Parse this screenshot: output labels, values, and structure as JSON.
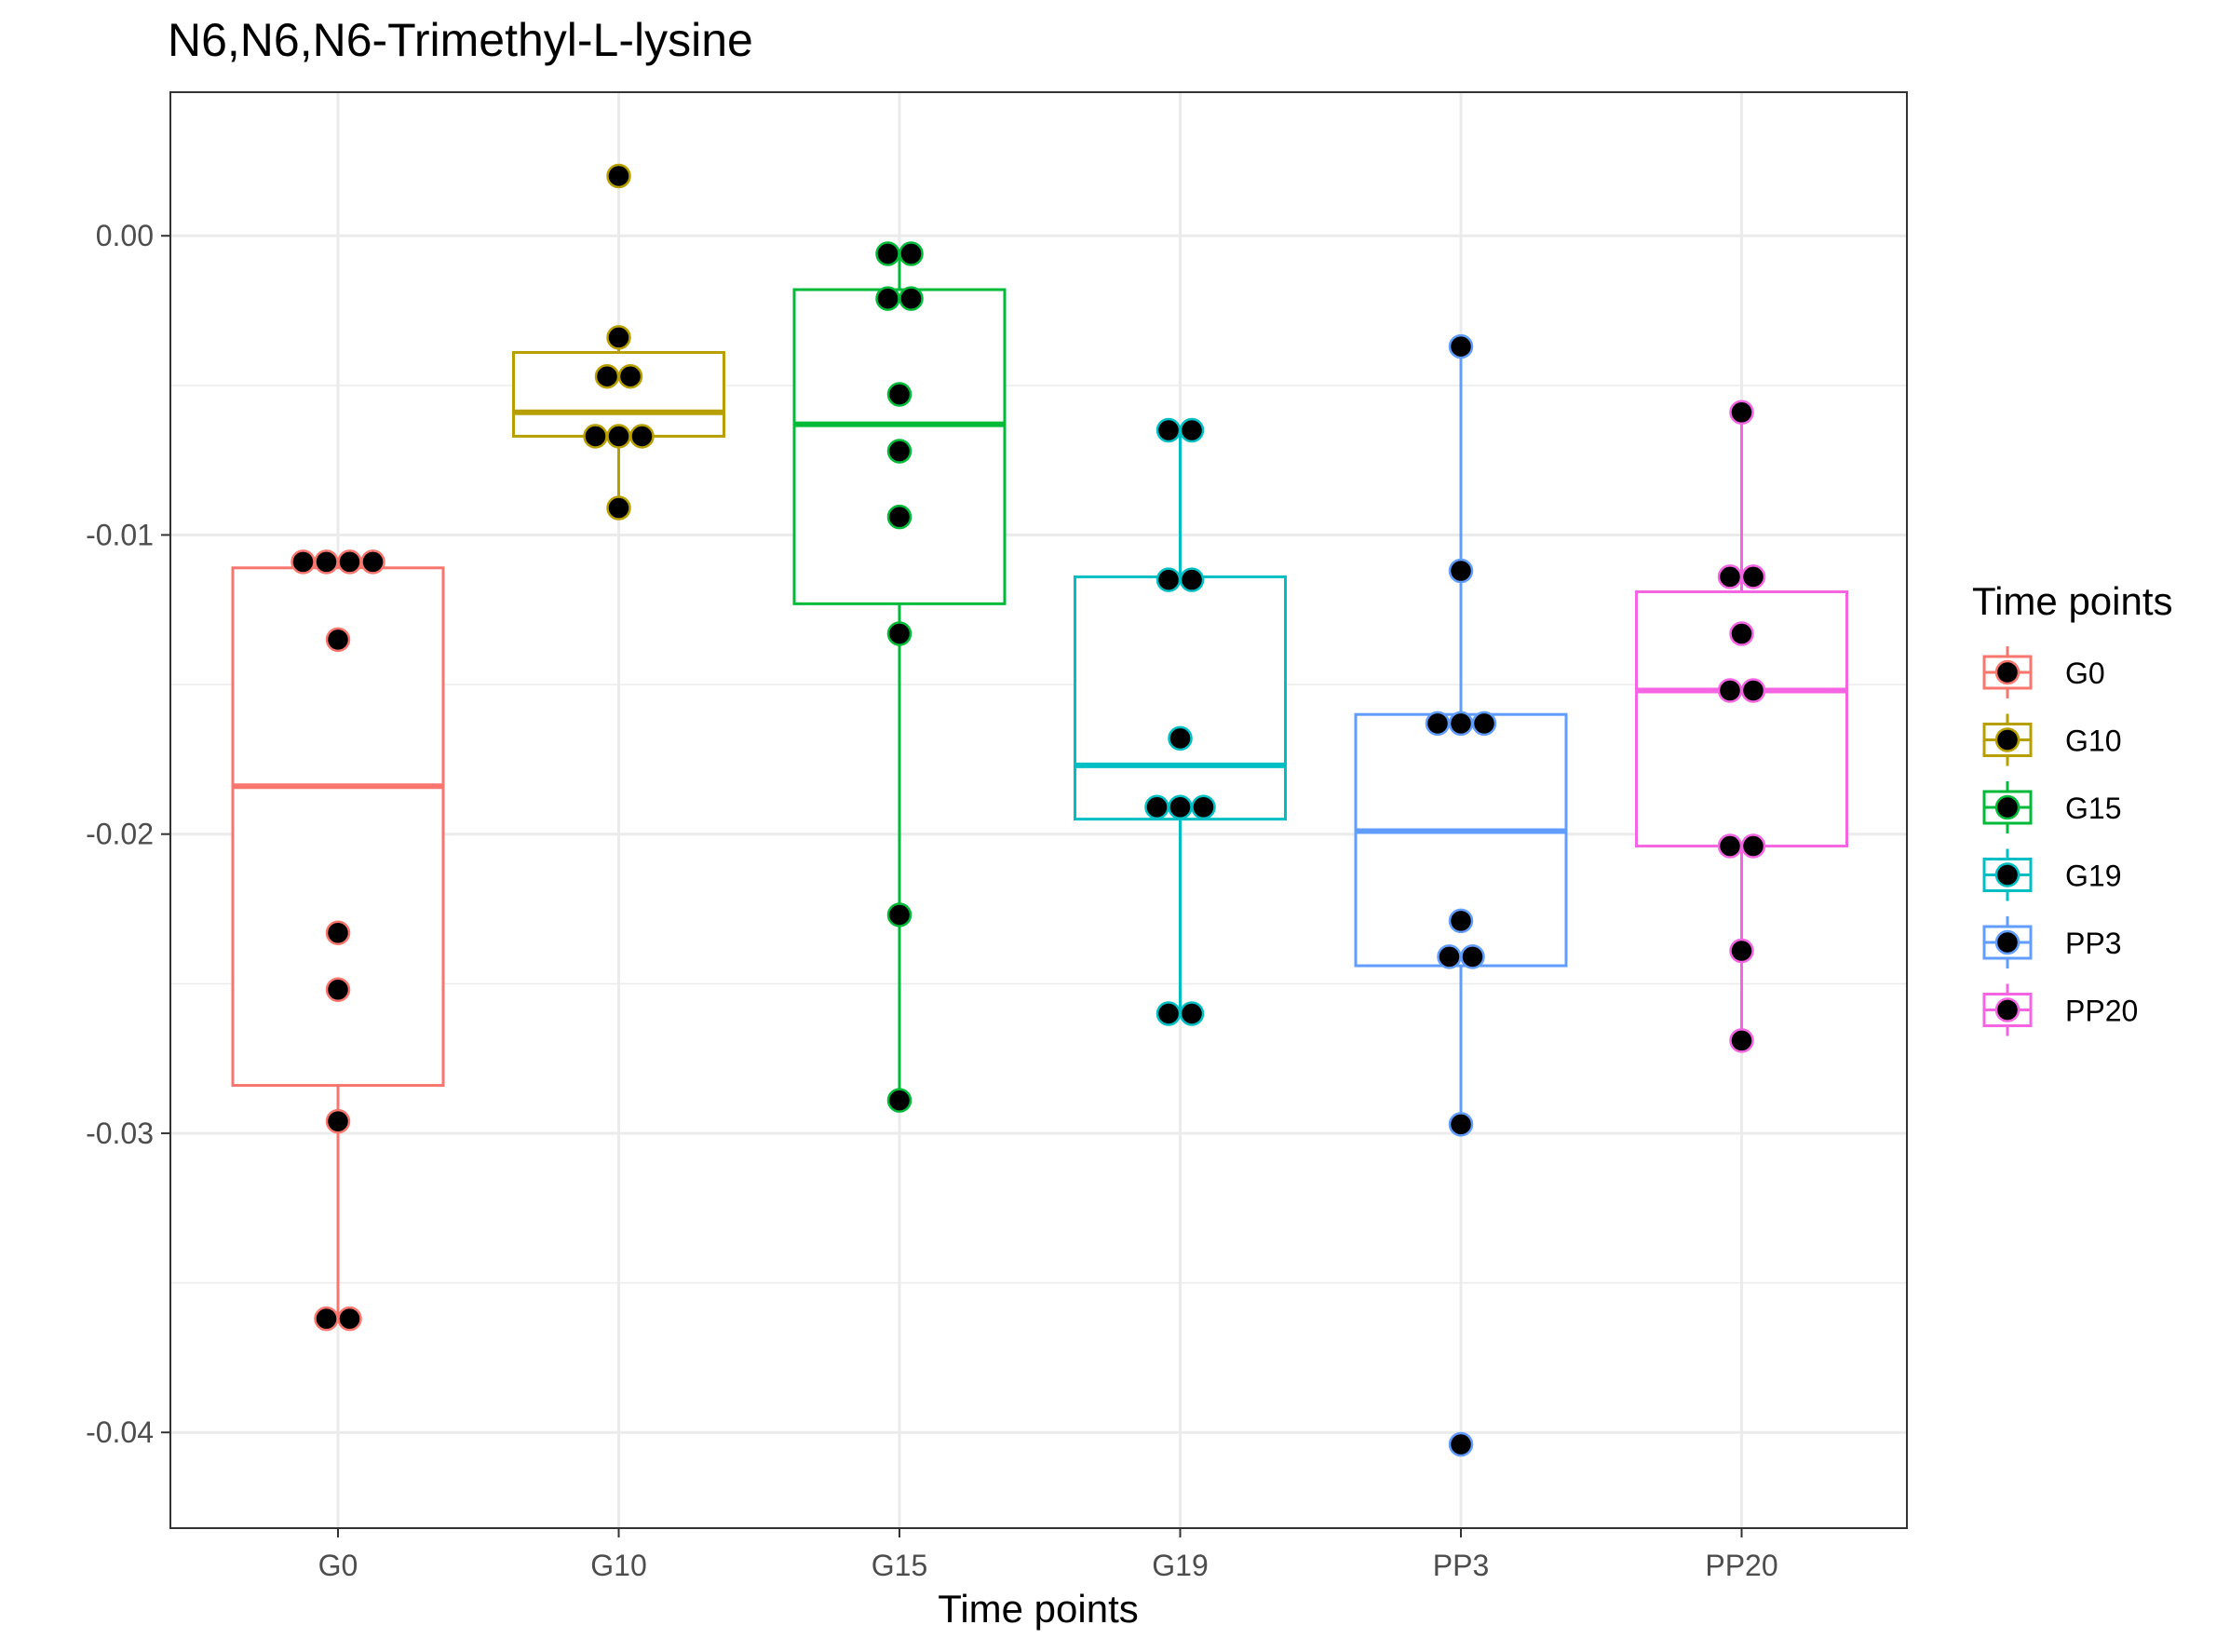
{
  "chart_data": {
    "type": "box",
    "title": "N6,N6,N6-Trimethyl-L-lysine",
    "xlabel": "Time points",
    "ylabel": "",
    "ylim": [
      -0.0432,
      0.0048
    ],
    "y_ticks": [
      0.0,
      -0.01,
      -0.02,
      -0.03,
      -0.04
    ],
    "y_tick_labels": [
      "0.00",
      "-0.01",
      "-0.02",
      "-0.03",
      "-0.04"
    ],
    "grid": true,
    "legend": {
      "title": "Time points",
      "position": "right"
    },
    "categories": [
      "G0",
      "G10",
      "G15",
      "G19",
      "PP3",
      "PP20"
    ],
    "series": [
      {
        "name": "G0",
        "color": "#F8766D",
        "box": {
          "min": -0.0362,
          "q1": -0.0284,
          "median": -0.0184,
          "q3": -0.0111,
          "max": -0.0109
        },
        "points": [
          -0.0109,
          -0.0109,
          -0.0109,
          -0.0109,
          -0.0135,
          -0.0233,
          -0.0252,
          -0.0296,
          -0.0362,
          -0.0362
        ]
      },
      {
        "name": "G10",
        "color": "#B79F00",
        "box": {
          "min": -0.0091,
          "q1": -0.0067,
          "median": -0.0059,
          "q3": -0.0039,
          "max": -0.0034
        },
        "points": [
          0.002,
          -0.0034,
          -0.0047,
          -0.0047,
          -0.0067,
          -0.0067,
          -0.0067,
          -0.0091
        ]
      },
      {
        "name": "G15",
        "color": "#00BA38",
        "box": {
          "min": -0.0289,
          "q1": -0.0123,
          "median": -0.0063,
          "q3": -0.0018,
          "max": -0.0006
        },
        "points": [
          -0.0006,
          -0.0006,
          -0.0021,
          -0.0021,
          -0.0053,
          -0.0072,
          -0.0094,
          -0.0133,
          -0.0227,
          -0.0289
        ]
      },
      {
        "name": "G19",
        "color": "#00BFC4",
        "box": {
          "min": -0.026,
          "q1": -0.0195,
          "median": -0.0177,
          "q3": -0.0114,
          "max": -0.0065
        },
        "points": [
          -0.0065,
          -0.0065,
          -0.0115,
          -0.0115,
          -0.0168,
          -0.0191,
          -0.0191,
          -0.0191,
          -0.026,
          -0.026
        ]
      },
      {
        "name": "PP3",
        "color": "#619CFF",
        "box": {
          "min": -0.0297,
          "q1": -0.0244,
          "median": -0.0199,
          "q3": -0.016,
          "max": -0.0037
        },
        "points": [
          -0.0037,
          -0.0112,
          -0.0163,
          -0.0163,
          -0.0163,
          -0.0229,
          -0.0241,
          -0.0241,
          -0.0297,
          -0.0404
        ]
      },
      {
        "name": "PP20",
        "color": "#F564E3",
        "box": {
          "min": -0.0269,
          "q1": -0.0204,
          "median": -0.0152,
          "q3": -0.0119,
          "max": -0.0059
        },
        "points": [
          -0.0059,
          -0.0114,
          -0.0114,
          -0.0133,
          -0.0152,
          -0.0152,
          -0.0204,
          -0.0204,
          -0.0239,
          -0.0269
        ]
      }
    ]
  }
}
